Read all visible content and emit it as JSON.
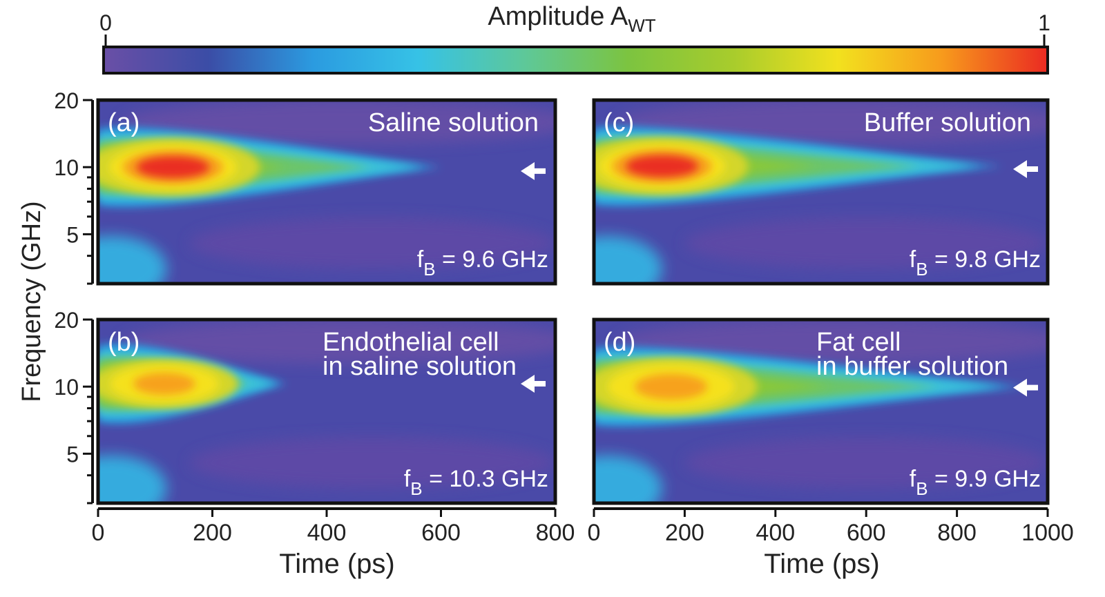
{
  "colorbar": {
    "title_main": "Amplitude A",
    "title_sub": "WT",
    "min_label": "0",
    "max_label": "1",
    "stops": [
      "#6a4fa6",
      "#3b4da6",
      "#2b9be0",
      "#36c2e6",
      "#5dc89a",
      "#7cc440",
      "#a8cc2c",
      "#f2e11e",
      "#f79a1c",
      "#ea2a22"
    ]
  },
  "axes": {
    "ylabel": "Frequency (GHz)",
    "xlabel_left": "Time (ps)",
    "xlabel_right": "Time (ps)",
    "yticks": [
      {
        "label": "20",
        "value": 20
      },
      {
        "label": "10",
        "value": 10
      },
      {
        "label": "5",
        "value": 5
      }
    ],
    "xticks_left": [
      {
        "label": "0",
        "value": 0
      },
      {
        "label": "200",
        "value": 200
      },
      {
        "label": "400",
        "value": 400
      },
      {
        "label": "600",
        "value": 600
      },
      {
        "label": "800",
        "value": 800
      }
    ],
    "xticks_right": [
      {
        "label": "0",
        "value": 0
      },
      {
        "label": "200",
        "value": 200
      },
      {
        "label": "400",
        "value": 400
      },
      {
        "label": "600",
        "value": 600
      },
      {
        "label": "800",
        "value": 800
      },
      {
        "label": "1000",
        "value": 1000
      }
    ]
  },
  "chart_data": [
    {
      "type": "heatmap",
      "panel": "(a)",
      "title": "Saline solution",
      "fb_prefix": "f",
      "fb_sub": "B",
      "fb_value": " = 9.6 GHz",
      "fB_GHz": 9.6,
      "xlim": [
        0,
        800
      ],
      "ylim": [
        3,
        20
      ],
      "yscale": "log",
      "peak": {
        "time_ps": 115,
        "freq_GHz": 10,
        "amplitude": 1.0
      },
      "decay_ps": 600
    },
    {
      "type": "heatmap",
      "panel": "(b)",
      "title_line1": "Endothelial cell",
      "title_line2": "in saline solution",
      "fb_prefix": "f",
      "fb_sub": "B",
      "fb_value": " = 10.3 GHz",
      "fB_GHz": 10.3,
      "xlim": [
        0,
        800
      ],
      "ylim": [
        3,
        20
      ],
      "yscale": "log",
      "peak": {
        "time_ps": 100,
        "freq_GHz": 10.3,
        "amplitude": 0.85
      },
      "decay_ps": 330
    },
    {
      "type": "heatmap",
      "panel": "(c)",
      "title": "Buffer solution",
      "fb_prefix": "f",
      "fb_sub": "B",
      "fb_value": " = 9.8 GHz",
      "fB_GHz": 9.8,
      "xlim": [
        0,
        1000
      ],
      "ylim": [
        3,
        20
      ],
      "yscale": "log",
      "peak": {
        "time_ps": 130,
        "freq_GHz": 10.1,
        "amplitude": 0.95
      },
      "decay_ps": 900
    },
    {
      "type": "heatmap",
      "panel": "(d)",
      "title_line1": "Fat cell",
      "title_line2": "in buffer solution",
      "fb_prefix": "f",
      "fb_sub": "B",
      "fb_value": " = 9.9 GHz",
      "fB_GHz": 9.9,
      "xlim": [
        0,
        1000
      ],
      "ylim": [
        3,
        20
      ],
      "yscale": "log",
      "peak": {
        "time_ps": 150,
        "freq_GHz": 10,
        "amplitude": 0.85
      },
      "decay_ps": 950
    }
  ]
}
